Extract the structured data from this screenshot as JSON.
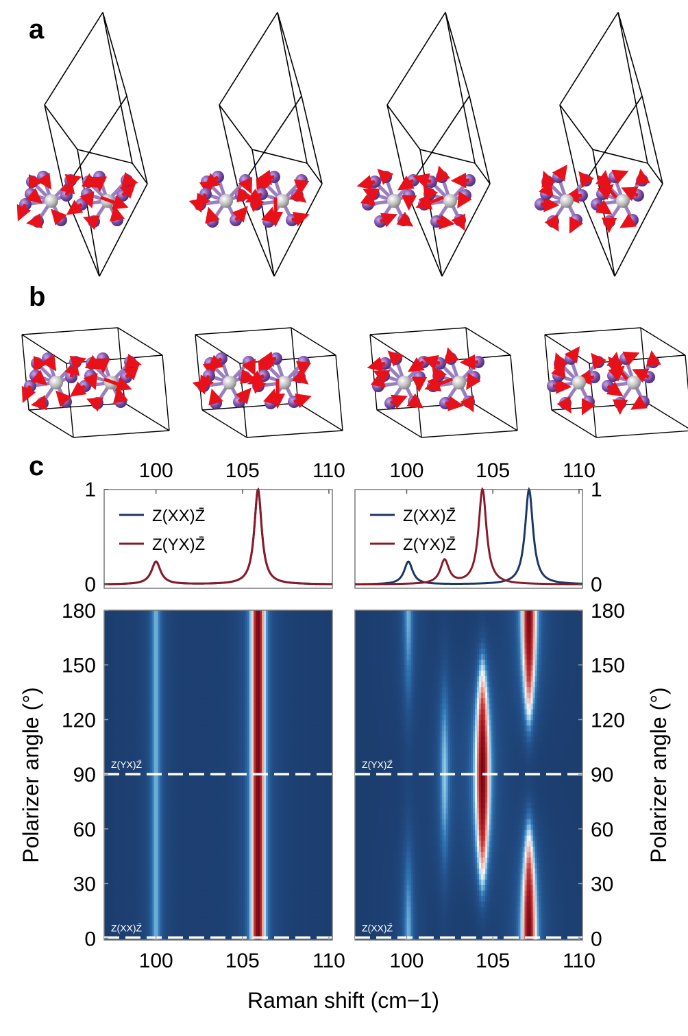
{
  "panel_labels": {
    "a": "a",
    "b": "b",
    "c": "c"
  },
  "colors": {
    "atom_purple": "#7b4fa6",
    "atom_grey": "#b8b8b8",
    "bond": "#9a7fc0",
    "arrow": "#e8111a",
    "cell_line": "#000000",
    "series_xx": "#1b3763",
    "series_yx": "#8a1a2a",
    "map_base": "#1c3d6e",
    "dashed_line": "#ffffff"
  },
  "chart_data": [
    {
      "type": "line",
      "panel": "c-top-left",
      "x_ticks": [
        100,
        105,
        110
      ],
      "y_ticks": [
        0,
        1
      ],
      "xlim": [
        97,
        110.2
      ],
      "ylim": [
        -0.04,
        1.0
      ],
      "legend": [
        "Z(XX)Z̄",
        "Z(YX)Z̄"
      ],
      "legend_position": "top-left",
      "series": [
        {
          "name": "Z(XX)Z̄",
          "peaks": [
            {
              "x": 100.0,
              "y": 0.24,
              "w": 0.32
            },
            {
              "x": 105.9,
              "y": 1.0,
              "w": 0.26
            }
          ]
        },
        {
          "name": "Z(YX)Z̄",
          "peaks": [
            {
              "x": 100.0,
              "y": 0.24,
              "w": 0.32
            },
            {
              "x": 105.9,
              "y": 1.0,
              "w": 0.26
            }
          ]
        }
      ]
    },
    {
      "type": "line",
      "panel": "c-top-right",
      "x_ticks": [
        100,
        105,
        110
      ],
      "y_ticks": [
        0,
        1
      ],
      "xlim": [
        97,
        110.2
      ],
      "ylim": [
        -0.04,
        1.0
      ],
      "legend": [
        "Z(XX)Z̄",
        "Z(YX)Z̄"
      ],
      "legend_position": "top-left",
      "series": [
        {
          "name": "Z(XX)Z̄",
          "peaks": [
            {
              "x": 100.1,
              "y": 0.24,
              "w": 0.3
            },
            {
              "x": 107.1,
              "y": 1.0,
              "w": 0.28
            }
          ]
        },
        {
          "name": "Z(YX)Z̄",
          "peaks": [
            {
              "x": 102.2,
              "y": 0.25,
              "w": 0.3
            },
            {
              "x": 104.4,
              "y": 1.0,
              "w": 0.28
            }
          ]
        }
      ]
    },
    {
      "type": "heatmap",
      "panel": "c-bottom-left",
      "xlabel": "Raman shift (cm−1)",
      "ylabel": "Polarizer angle (°)",
      "x_ticks": [
        100,
        105,
        110
      ],
      "y_ticks": [
        0,
        30,
        60,
        90,
        120,
        150,
        180
      ],
      "xlim": [
        97,
        110.2
      ],
      "ylim": [
        -1,
        180
      ],
      "lines": [
        {
          "x": 100.0,
          "amplitude": [
            0.24,
            0.24
          ],
          "w": 0.32
        },
        {
          "x": 105.9,
          "amplitude": [
            1.0,
            1.0
          ],
          "w": 0.26
        }
      ],
      "annotations": [
        {
          "text": "Z(YX)Z̄",
          "angle": 90
        },
        {
          "text": "Z(XX)Z̄",
          "angle": 0
        }
      ]
    },
    {
      "type": "heatmap",
      "panel": "c-bottom-right",
      "xlabel": "Raman shift (cm−1)",
      "ylabel": "Polarizer angle (°)",
      "x_ticks": [
        100,
        105,
        110
      ],
      "y_ticks": [
        0,
        30,
        60,
        90,
        120,
        150,
        180
      ],
      "xlim": [
        97,
        110.2
      ],
      "ylim": [
        -1,
        180
      ],
      "lines": [
        {
          "x": 100.1,
          "amplitude": [
            0.24,
            0.03
          ],
          "w": 0.3
        },
        {
          "x": 102.2,
          "amplitude": [
            0.02,
            0.25
          ],
          "w": 0.3
        },
        {
          "x": 104.4,
          "amplitude": [
            0.02,
            1.0
          ],
          "w": 0.28
        },
        {
          "x": 107.1,
          "amplitude": [
            1.0,
            0.02
          ],
          "w": 0.28
        }
      ],
      "annotations": [
        {
          "text": "Z(YX)Z̄",
          "angle": 90
        },
        {
          "text": "Z(XX)Z̄",
          "angle": 0
        }
      ]
    }
  ]
}
